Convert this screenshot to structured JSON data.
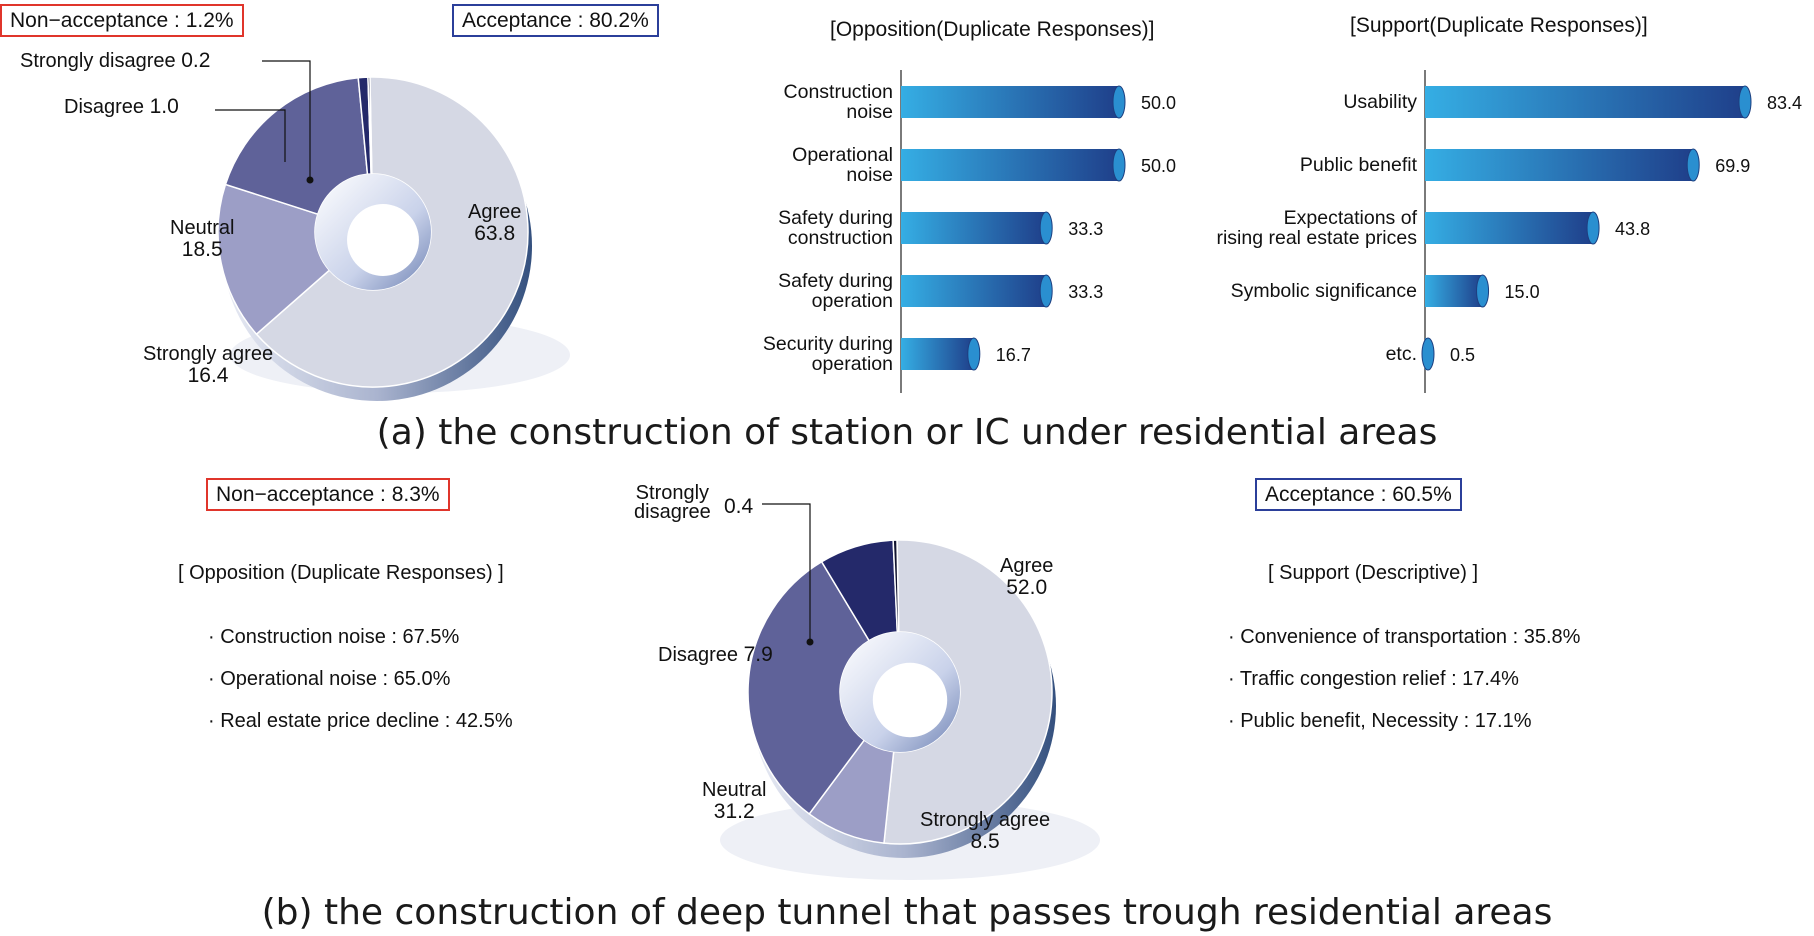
{
  "colors": {
    "agree": "#d5d8e4",
    "strongly_agree": "#9c9ec6",
    "neutral": "#5f6299",
    "disagree": "#24296a",
    "strongly_disagree": "#111430",
    "bar_light": "#35aee4",
    "bar_dark": "#1f3f8a",
    "nonacceptance_border": "#e0352b",
    "acceptance_border": "#2b3f9a"
  },
  "panel_a": {
    "caption": "(a) the construction of station or IC under residential areas",
    "nonacceptance": "Non−acceptance : 1.2%",
    "acceptance": "Acceptance : 80.2%",
    "donut_labels": {
      "strongly_disagree": "Strongly disagree",
      "strongly_disagree_val": "0.2",
      "disagree": "Disagree",
      "disagree_val": "1.0",
      "neutral": "Neutral",
      "neutral_val": "18.5",
      "agree": "Agree",
      "agree_val": "63.8",
      "strongly_agree": "Strongly agree",
      "strongly_agree_val": "16.4"
    },
    "opposition_title": "[Opposition(Duplicate Responses)]",
    "support_title": "[Support(Duplicate Responses)]"
  },
  "panel_b": {
    "caption": "(b) the construction of deep tunnel that passes trough residential areas",
    "nonacceptance": "Non−acceptance : 8.3%",
    "acceptance": "Acceptance : 60.5%",
    "donut_labels": {
      "strongly_disagree_1": "Strongly",
      "strongly_disagree_2": "disagree",
      "strongly_disagree_val": "0.4",
      "disagree": "Disagree",
      "disagree_val": "7.9",
      "neutral": "Neutral",
      "neutral_val": "31.2",
      "agree": "Agree",
      "agree_val": "52.0",
      "strongly_agree": "Strongly agree",
      "strongly_agree_val": "8.5"
    },
    "opposition_title": "[ Opposition (Duplicate Responses) ]",
    "opposition_items": [
      "· Construction noise : 67.5%",
      "· Operational noise : 65.0%",
      "· Real estate price decline : 42.5%"
    ],
    "support_title": "[ Support (Descriptive) ]",
    "support_items": [
      "· Convenience of transportation  : 35.8%",
      "· Traffic congestion relief : 17.4%",
      "· Public benefit, Necessity : 17.1%"
    ]
  },
  "chart_data": [
    {
      "type": "pie",
      "categories": [
        "Agree",
        "Strongly agree",
        "Neutral",
        "Disagree",
        "Strongly disagree"
      ],
      "values": [
        63.8,
        16.4,
        18.5,
        1.0,
        0.2
      ]
    },
    {
      "type": "bar",
      "title": "[Opposition(Duplicate Responses)]",
      "categories": [
        "Construction noise",
        "Operational noise",
        "Safety during construction",
        "Safety during operation",
        "Security during operation"
      ],
      "category_lines": [
        [
          "Construction",
          "noise"
        ],
        [
          "Operational",
          "noise"
        ],
        [
          "Safety during",
          "construction"
        ],
        [
          "Safety during",
          "operation"
        ],
        [
          "Security during",
          "operation"
        ]
      ],
      "values": [
        50.0,
        50.0,
        33.3,
        33.3,
        16.7
      ],
      "labels": [
        "50.0",
        "50.0",
        "33.3",
        "33.3",
        "16.7"
      ]
    },
    {
      "type": "bar",
      "title": "[Support(Duplicate Responses)]",
      "categories": [
        "Usability",
        "Public benefit",
        "Expectations of rising real estate prices",
        "Symbolic significance",
        "etc."
      ],
      "category_lines": [
        [
          "Usability"
        ],
        [
          "Public benefit"
        ],
        [
          "Expectations of",
          "rising real estate prices"
        ],
        [
          "Symbolic significance"
        ],
        [
          "etc."
        ]
      ],
      "values": [
        83.4,
        69.9,
        43.8,
        15.0,
        0.5
      ],
      "labels": [
        "83.4",
        "69.9",
        "43.8",
        "15.0",
        "0.5"
      ]
    },
    {
      "type": "pie",
      "categories": [
        "Agree",
        "Strongly agree",
        "Neutral",
        "Disagree",
        "Strongly disagree"
      ],
      "values": [
        52.0,
        8.5,
        31.2,
        7.9,
        0.4
      ]
    }
  ]
}
